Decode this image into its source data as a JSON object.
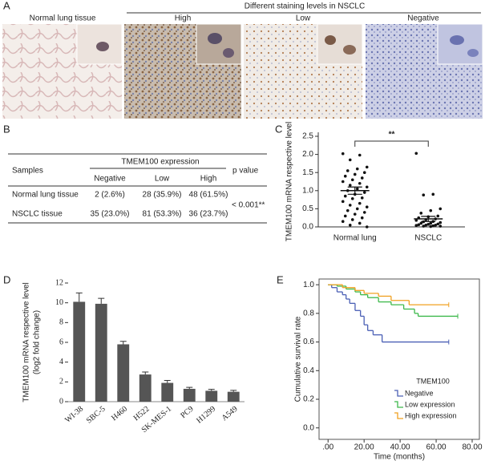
{
  "panels": [
    "A",
    "B",
    "C",
    "D",
    "E"
  ],
  "panel_a": {
    "header": "Different staining levels in NSCLC",
    "images": [
      "Normal lung tissue",
      "High",
      "Low",
      "Negative"
    ]
  },
  "table": {
    "samples_header": "Samples",
    "group_header": "TMEM100 expression",
    "p_header": "p value",
    "columns": [
      "Negative",
      "Low",
      "High"
    ],
    "rows": [
      [
        "Normal lung tissue",
        "2 (2.6%)",
        "28 (35.9%)",
        "48 (61.5%)"
      ],
      [
        "NSCLC tissue",
        "35 (23.0%)",
        "81 (53.3%)",
        "36 (23.7%)"
      ]
    ],
    "p": "< 0.001**"
  },
  "chart_data": [
    {
      "type": "strip",
      "ylabel": "TMEM100 mRNA respective level",
      "categories": [
        "Normal lung",
        "NSCLC"
      ],
      "annotation": "**",
      "color": "#111111",
      "ylim": [
        0,
        2.5
      ],
      "yticks": [
        {
          "value": 0,
          "label": "0.0"
        },
        {
          "value": 0.5,
          "label": "0.5"
        },
        {
          "value": 1,
          "label": "1.0"
        },
        {
          "value": 1.5,
          "label": "1.5"
        },
        {
          "value": 2,
          "label": "2.0"
        },
        {
          "value": 2.5,
          "label": "2.5"
        }
      ],
      "groups": [
        {
          "values": [
            2.02,
            1.98,
            1.85,
            1.65,
            1.6,
            1.55,
            1.5,
            1.45,
            1.4,
            1.35,
            1.3,
            1.25,
            1.2,
            1.15,
            1.1,
            1.05,
            1.0,
            0.95,
            0.9,
            0.85,
            0.8,
            0.78,
            0.7,
            0.65,
            0.6,
            0.55,
            0.5,
            0.45,
            0.4,
            0.35,
            0.3,
            0.25,
            0.2,
            0.15,
            0.1,
            0.05,
            0.0
          ],
          "mean": 1.0,
          "sem": 0.1
        },
        {
          "values": [
            2.03,
            0.9,
            0.88,
            0.5,
            0.45,
            0.38,
            0.3,
            0.28,
            0.25,
            0.22,
            0.2,
            0.18,
            0.15,
            0.14,
            0.12,
            0.1,
            0.1,
            0.08,
            0.07,
            0.06,
            0.05,
            0.05,
            0.04,
            0.03,
            0.02,
            0.02,
            0.01
          ],
          "mean": 0.22,
          "sem": 0.07
        }
      ]
    },
    {
      "type": "bar",
      "ylabel": [
        "TMEM100 mRNA respective level",
        "(log2 fold change)"
      ],
      "color": "#555555",
      "categories": [
        "WI-38",
        "SBC-5",
        "H460",
        "H522",
        "SK-MES-1",
        "PC9",
        "H1299",
        "A549"
      ],
      "values": [
        10.1,
        9.9,
        5.8,
        2.75,
        1.9,
        1.3,
        1.1,
        1.0
      ],
      "errors": [
        0.9,
        0.55,
        0.3,
        0.25,
        0.25,
        0.15,
        0.15,
        0.15
      ],
      "ylim": [
        0,
        12
      ],
      "yticks": [
        0,
        2,
        4,
        6,
        8,
        10,
        12
      ]
    },
    {
      "type": "survival",
      "xlabel": "Time (months)",
      "ylabel": "Cumulative survival rate",
      "legend_title": "TMEM100",
      "xlim": [
        -5,
        84
      ],
      "ylim": [
        -0.08,
        1.04
      ],
      "xticks": [
        {
          "value": 0,
          "label": ".00"
        },
        {
          "value": 20,
          "label": "20.00"
        },
        {
          "value": 40,
          "label": "40.00"
        },
        {
          "value": 60,
          "label": "60.00"
        },
        {
          "value": 80,
          "label": "80.00"
        }
      ],
      "yticks": [
        {
          "value": 0,
          "label": "0.0"
        },
        {
          "value": 0.2,
          "label": "0.2"
        },
        {
          "value": 0.4,
          "label": "0.4"
        },
        {
          "value": 0.6,
          "label": "0.6"
        },
        {
          "value": 0.8,
          "label": "0.8"
        },
        {
          "value": 1,
          "label": "1.0"
        }
      ],
      "series": [
        {
          "name": "Negative",
          "color": "#4a5fb5",
          "x": [
            0,
            2,
            5,
            8,
            10,
            12,
            15,
            18,
            20,
            22,
            25,
            30,
            67
          ],
          "values": [
            1.0,
            0.98,
            0.95,
            0.93,
            0.9,
            0.87,
            0.82,
            0.78,
            0.72,
            0.68,
            0.65,
            0.6,
            0.6
          ]
        },
        {
          "name": "Low expression",
          "color": "#3cb84a",
          "x": [
            0,
            5,
            10,
            15,
            18,
            22,
            28,
            35,
            42,
            48,
            50,
            72
          ],
          "values": [
            1.0,
            0.99,
            0.97,
            0.95,
            0.93,
            0.91,
            0.88,
            0.86,
            0.83,
            0.8,
            0.78,
            0.78
          ]
        },
        {
          "name": "High expression",
          "color": "#f0a020",
          "x": [
            0,
            8,
            15,
            20,
            28,
            35,
            45,
            67
          ],
          "values": [
            1.0,
            0.98,
            0.96,
            0.94,
            0.92,
            0.89,
            0.86,
            0.86
          ]
        }
      ]
    }
  ]
}
